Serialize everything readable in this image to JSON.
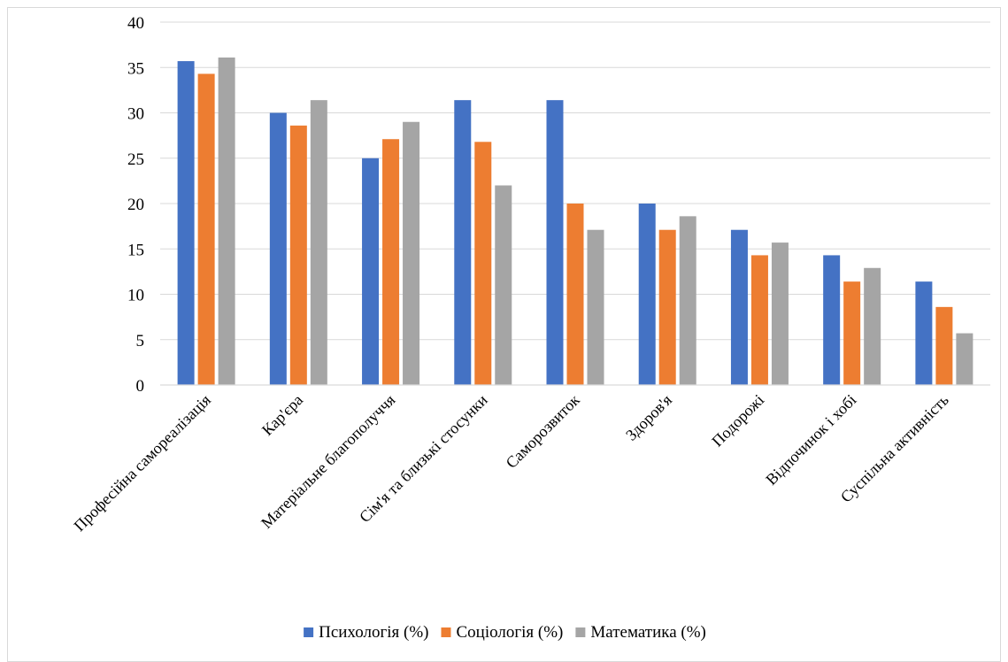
{
  "chart_data": {
    "type": "bar",
    "title": "",
    "xlabel": "",
    "ylabel": "",
    "ylim": [
      0,
      40
    ],
    "yticks": [
      0,
      5,
      10,
      15,
      20,
      25,
      30,
      35,
      40
    ],
    "grid": "horizontal",
    "legend_position": "bottom",
    "categories": [
      "Професійна самореалізація",
      "Кар'єра",
      "Матеріальне благополуччя",
      "Сім'я та близькі стосунки",
      "Саморозвиток",
      "Здоров'я",
      "Подорожі",
      "Відпочинок і хобі",
      "Суспільна активність"
    ],
    "series": [
      {
        "name": "Психологія (%)",
        "color": "#4472c4",
        "values": [
          35.7,
          30.0,
          25.0,
          31.4,
          31.4,
          20.0,
          17.1,
          14.3,
          11.4
        ]
      },
      {
        "name": "Соціологія (%)",
        "color": "#ed7d31",
        "values": [
          34.3,
          28.6,
          27.1,
          26.8,
          20.0,
          17.1,
          14.3,
          11.4,
          8.6
        ]
      },
      {
        "name": "Математика (%)",
        "color": "#a5a5a5",
        "values": [
          36.1,
          31.4,
          29.0,
          22.0,
          17.1,
          18.6,
          15.7,
          12.9,
          5.7
        ]
      }
    ]
  },
  "colors": {
    "gridline": "#d9d9d9",
    "axis": "#d9d9d9",
    "background": "#ffffff"
  }
}
